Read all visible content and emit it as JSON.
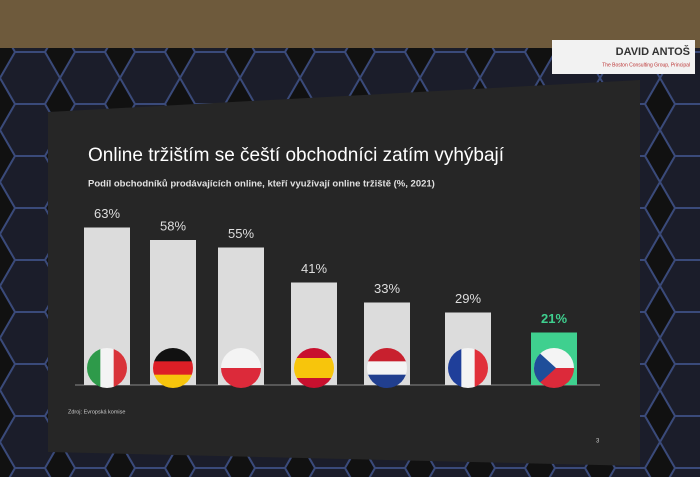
{
  "header": {
    "name": "DAVID ANTOŠ",
    "role": "The Boston Consulting Group, Principal"
  },
  "chart_data": {
    "type": "bar",
    "title": "Online tržištím se čeští obchodníci zatím vyhýbají",
    "subtitle": "Podíl obchodníků prodávajících online, kteří využívají online tržiště (%, 2021)",
    "categories": [
      null,
      null,
      null,
      null,
      null,
      null,
      null
    ],
    "values": [
      63,
      58,
      55,
      41,
      33,
      29,
      21
    ],
    "value_labels": [
      "63%",
      "58%",
      "55%",
      "41%",
      "33%",
      "29%",
      "21%"
    ],
    "colors": [
      "#dcdcdc",
      "#dcdcdc",
      "#dcdcdc",
      "#dcdcdc",
      "#dcdcdc",
      "#dcdcdc",
      "#3fd08f"
    ],
    "highlight": 6,
    "source": "Zdroj: Evropská komise",
    "page": "3"
  }
}
